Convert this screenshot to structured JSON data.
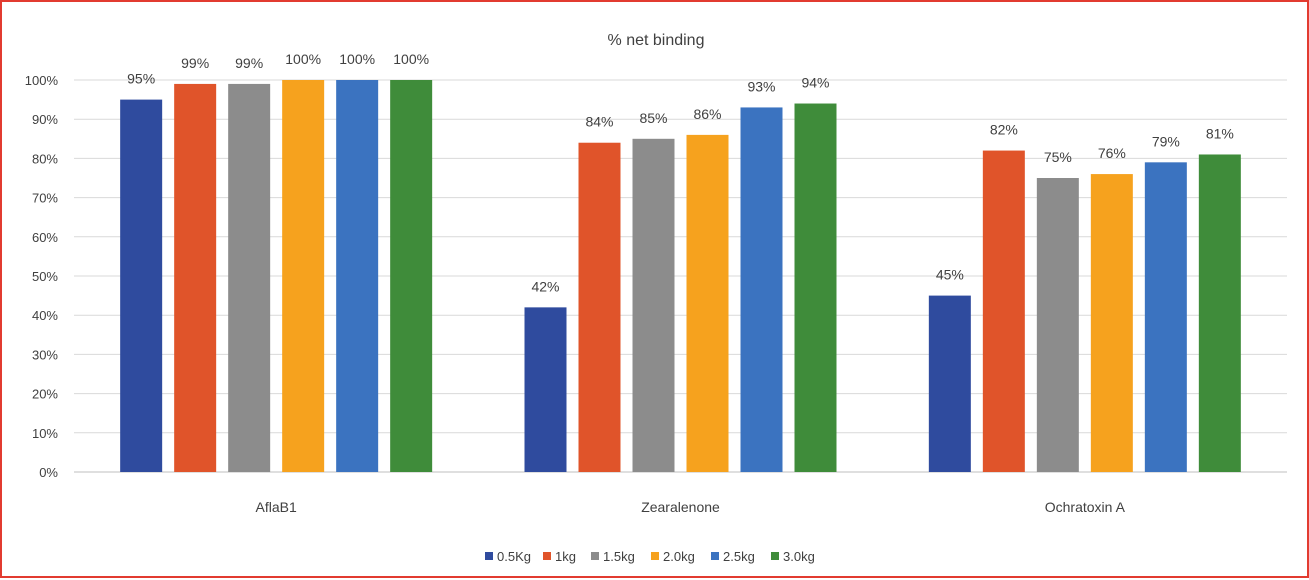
{
  "chart_data": {
    "type": "bar",
    "title": "% net binding",
    "categories": [
      "AflaB1",
      "Zearalenone",
      "Ochratoxin A"
    ],
    "series": [
      {
        "name": "0.5Kg",
        "color": "#2f4b9e",
        "values": [
          95,
          42,
          45
        ],
        "labels": [
          "95%",
          "42%",
          "45%"
        ]
      },
      {
        "name": "1kg",
        "color": "#e0542a",
        "values": [
          99,
          84,
          82
        ],
        "labels": [
          "99%",
          "84%",
          "82%"
        ]
      },
      {
        "name": "1.5kg",
        "color": "#8c8c8c",
        "values": [
          99,
          85,
          75
        ],
        "labels": [
          "99%",
          "85%",
          "75%"
        ]
      },
      {
        "name": "2.0kg",
        "color": "#f6a21e",
        "values": [
          100,
          86,
          76
        ],
        "labels": [
          "100%",
          "86%",
          "76%"
        ]
      },
      {
        "name": "2.5kg",
        "color": "#3b73c0",
        "values": [
          100,
          93,
          79
        ],
        "labels": [
          "100%",
          "93%",
          "79%"
        ]
      },
      {
        "name": "3.0kg",
        "color": "#3f8c3a",
        "values": [
          100,
          94,
          81
        ],
        "labels": [
          "100%",
          "94%",
          "81%"
        ]
      }
    ],
    "ylim": [
      0,
      100
    ],
    "yticks": [
      "0%",
      "10%",
      "20%",
      "30%",
      "40%",
      "50%",
      "60%",
      "70%",
      "80%",
      "90%",
      "100%"
    ],
    "grid": true,
    "legend_position": "bottom"
  }
}
